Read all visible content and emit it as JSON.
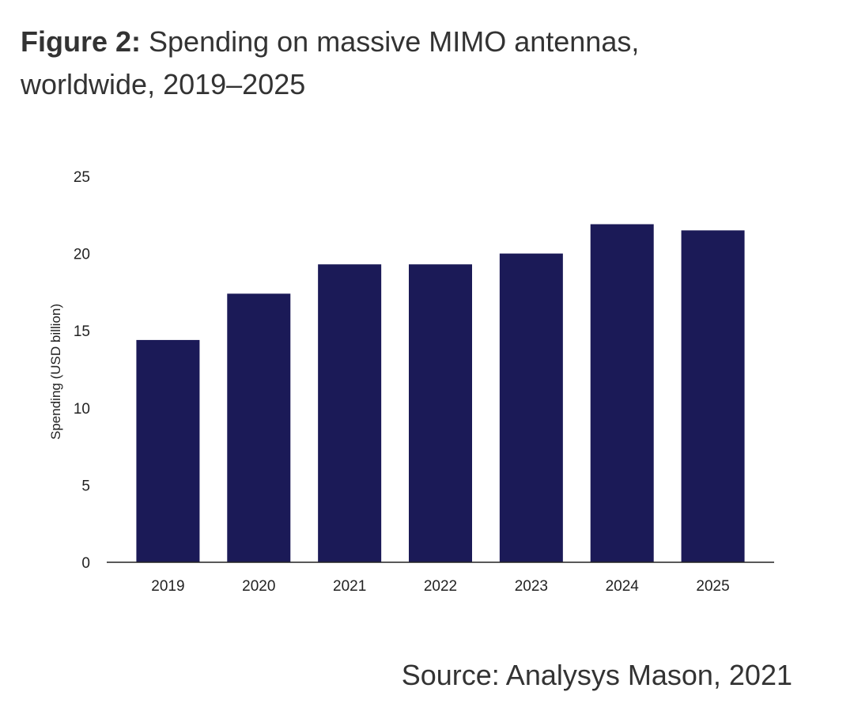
{
  "figure": {
    "label": "Figure 2:",
    "title": " Spending on massive MIMO antennas, worldwide, 2019–2025"
  },
  "source": "Source: Analysys Mason, 2021",
  "chart_data": {
    "type": "bar",
    "categories": [
      "2019",
      "2020",
      "2021",
      "2022",
      "2023",
      "2024",
      "2025"
    ],
    "values": [
      14.4,
      17.4,
      19.3,
      19.3,
      20.0,
      21.9,
      21.5
    ],
    "title": "",
    "xlabel": "",
    "ylabel": "Spending (USD billion)",
    "ylim": [
      0,
      25
    ],
    "yticks": [
      "0",
      "5",
      "10",
      "15",
      "20",
      "25"
    ],
    "grid": false,
    "legend": "none",
    "bar_color": "#1b1a57"
  }
}
